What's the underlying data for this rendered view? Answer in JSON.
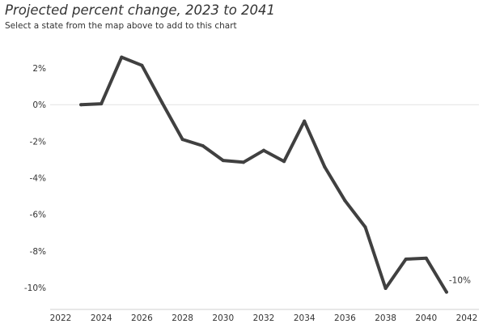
{
  "title": "Projected percent change, 2023 to 2041",
  "subtitle": "Select a state from the map above to add to this chart",
  "chart_data": {
    "type": "line",
    "title": "Projected percent change, 2023 to 2041",
    "subtitle": "Select a state from the map above to add to this chart",
    "xlabel": "",
    "ylabel": "",
    "x": [
      2023,
      2024,
      2025,
      2026,
      2027,
      2028,
      2029,
      2030,
      2031,
      2032,
      2033,
      2034,
      2035,
      2036,
      2037,
      2038,
      2039,
      2040,
      2041
    ],
    "series": [
      {
        "name": "",
        "values": [
          0.0,
          0.05,
          2.6,
          2.15,
          0.1,
          -1.9,
          -2.25,
          -3.05,
          -3.15,
          -2.5,
          -3.1,
          -0.9,
          -3.4,
          -5.25,
          -6.7,
          -10.05,
          -8.45,
          -8.4,
          -10.25
        ],
        "color": "#404040",
        "end_label": "-10%"
      }
    ],
    "xlim": [
      2022,
      2042
    ],
    "ylim": [
      -11.2,
      3.6
    ],
    "x_ticks": [
      2022,
      2024,
      2026,
      2028,
      2030,
      2032,
      2034,
      2036,
      2038,
      2040,
      2042
    ],
    "x_tick_labels": [
      "2022",
      "2024",
      "2026",
      "2028",
      "2030",
      "2032",
      "2034",
      "2036",
      "2038",
      "2040",
      "2042"
    ],
    "y_ticks": [
      2,
      0,
      -2,
      -4,
      -6,
      -8,
      -10
    ],
    "y_tick_labels": [
      "2%",
      "0%",
      "-2%",
      "-4%",
      "-6%",
      "-8%",
      "-10%"
    ],
    "zero_line": true,
    "grid": false,
    "legend": "none"
  }
}
